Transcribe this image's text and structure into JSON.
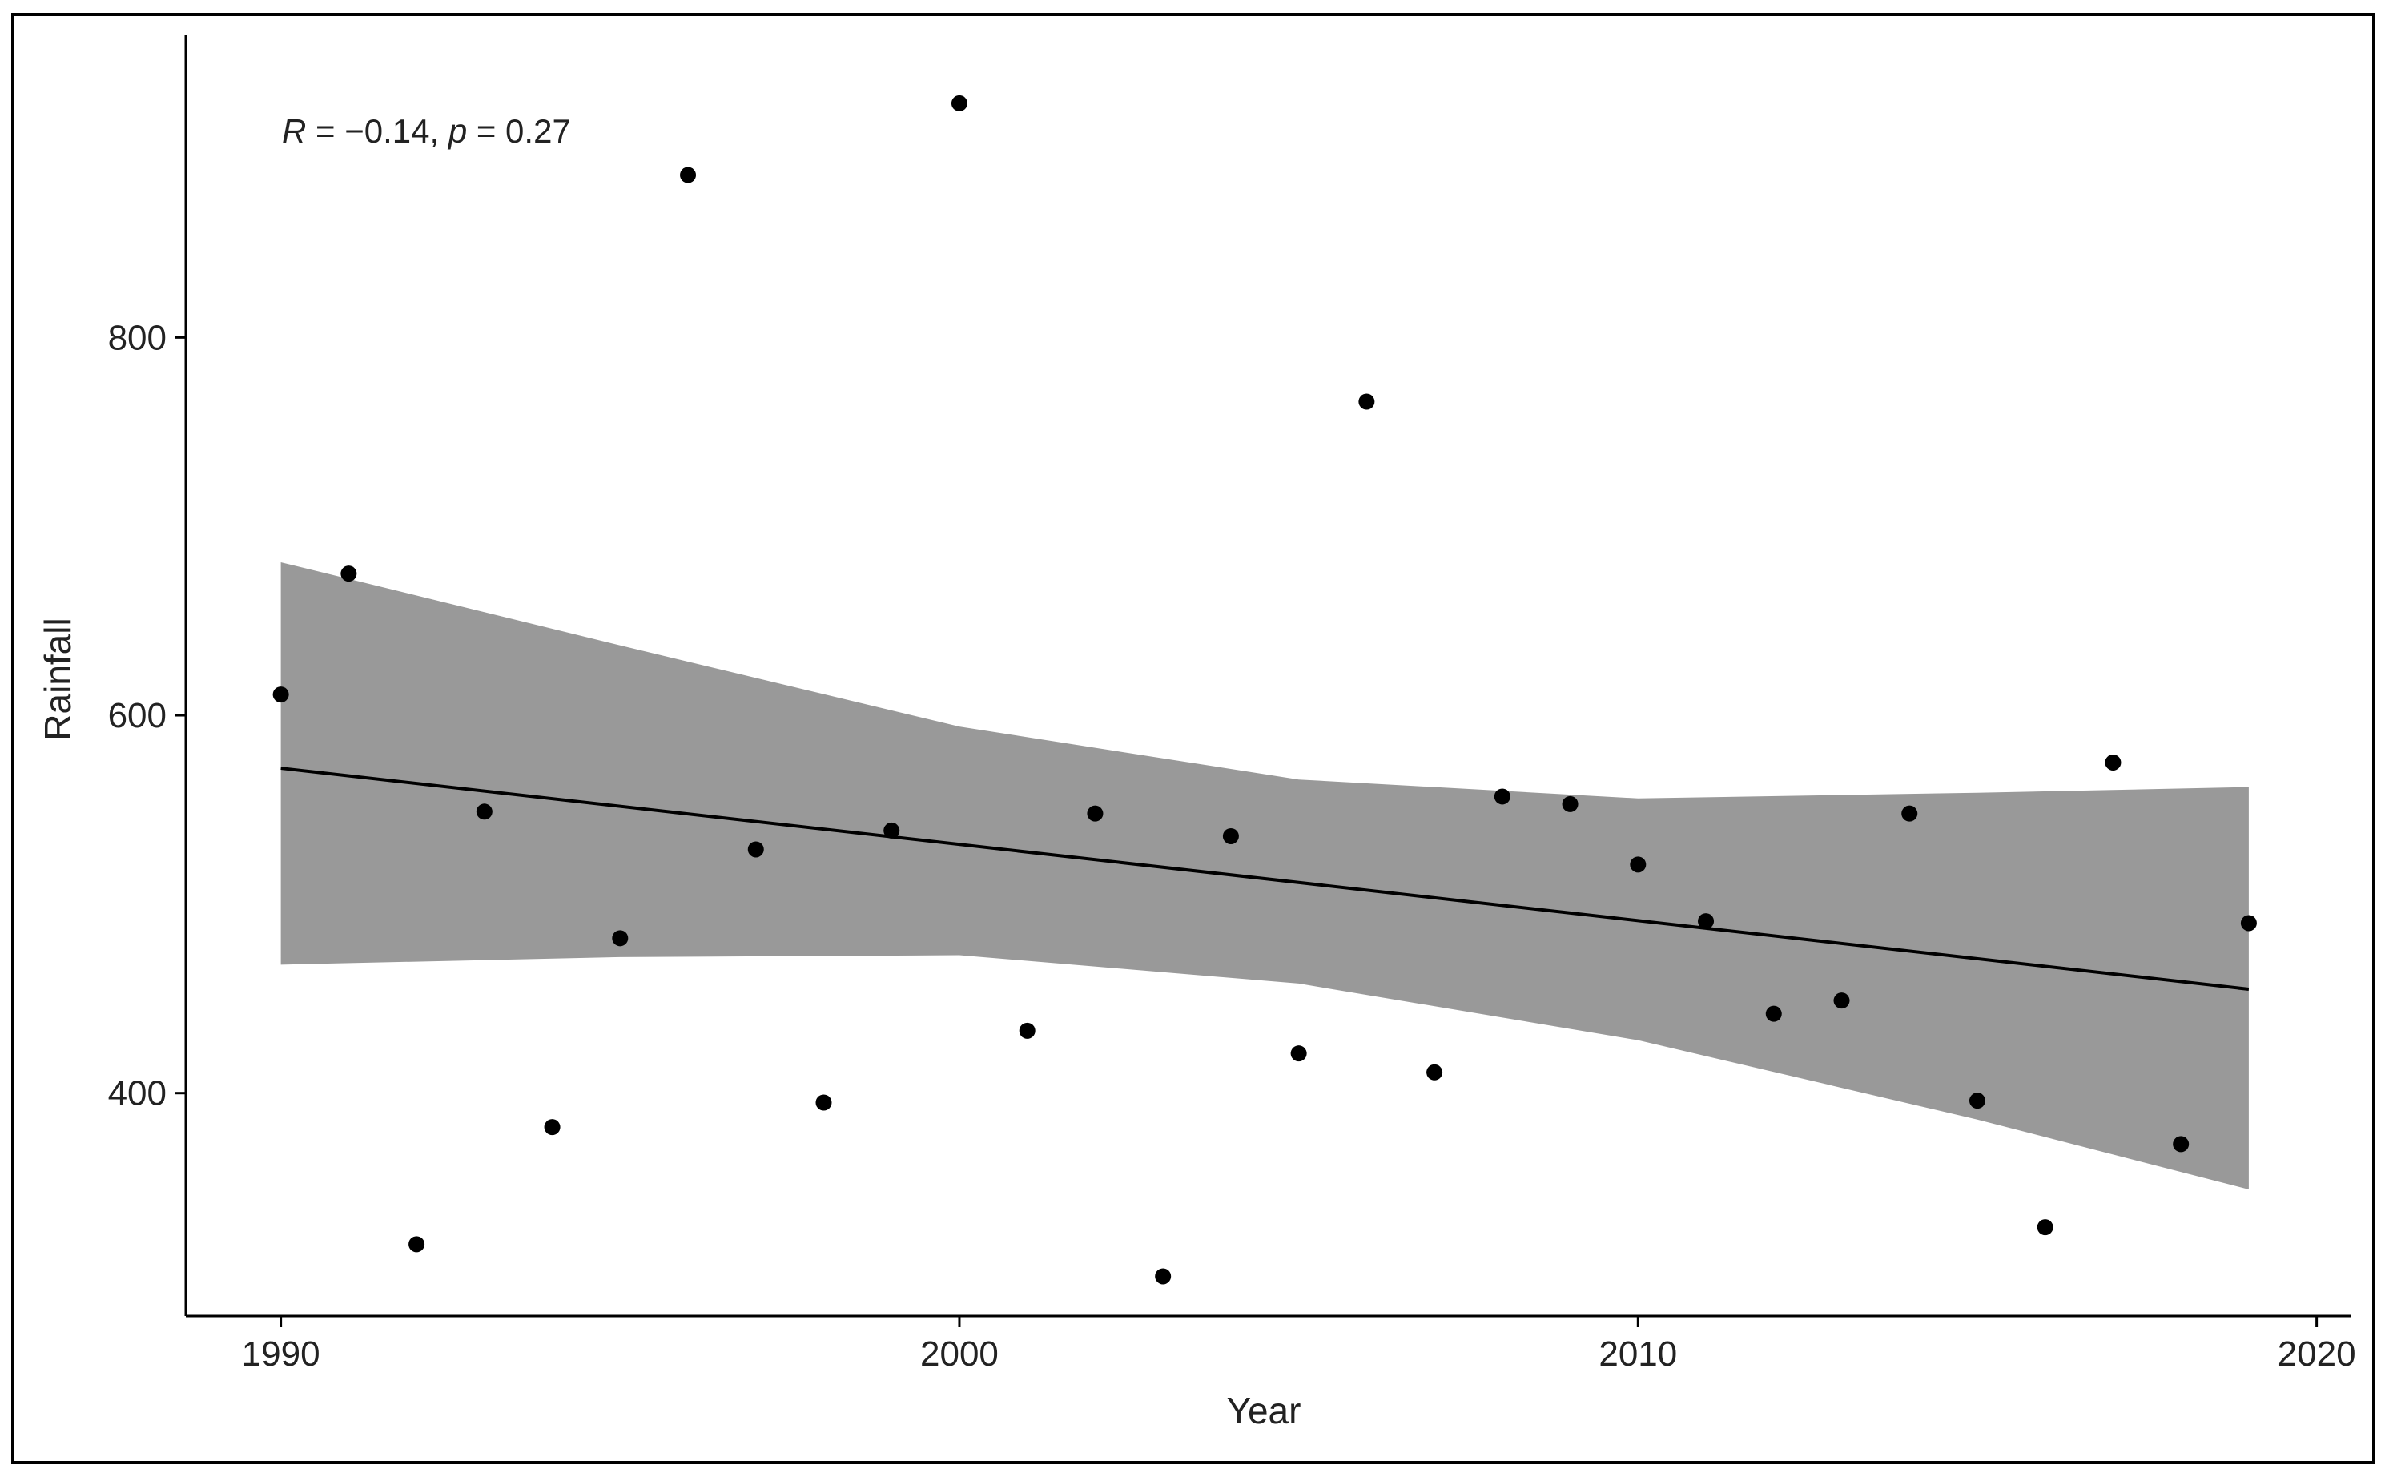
{
  "chart_data": {
    "type": "scatter",
    "xlabel": "Year",
    "ylabel": "Rainfall",
    "xlim": [
      1988.6,
      2020.5
    ],
    "ylim": [
      282,
      960
    ],
    "xticks": [
      1990,
      2000,
      2010,
      2020
    ],
    "yticks": [
      400,
      600,
      800
    ],
    "grid": false,
    "annotation": {
      "R_symbol": "R",
      "R_eq": " = −0.14, ",
      "p_symbol": "p",
      "p_eq": " = 0.27"
    },
    "points": {
      "x": [
        1990,
        1991,
        1992,
        1993,
        1994,
        1995,
        1996,
        1997,
        1998,
        1999,
        2000,
        2001,
        2002,
        2003,
        2004,
        2005,
        2006,
        2007,
        2008,
        2009,
        2010,
        2011,
        2012,
        2013,
        2014,
        2015,
        2016,
        2017,
        2018,
        2019
      ],
      "y": [
        611,
        675,
        320,
        549,
        382,
        482,
        886,
        529,
        395,
        539,
        924,
        433,
        548,
        303,
        536,
        421,
        766,
        411,
        557,
        553,
        521,
        491,
        442,
        449,
        548,
        396,
        329,
        575,
        373,
        490
      ]
    },
    "regression": {
      "x": [
        1990,
        2019
      ],
      "y": [
        572,
        455
      ]
    },
    "confidence_band": {
      "x": [
        1990,
        1995,
        2000,
        2005,
        2010,
        2015,
        2019
      ],
      "upper": [
        681,
        637,
        594,
        566,
        556,
        559,
        562
      ],
      "lower": [
        468,
        472,
        473,
        458,
        428,
        386,
        349
      ]
    },
    "colors": {
      "points": "#000000",
      "line": "#000000",
      "band": "#999999",
      "axis": "#000000"
    }
  }
}
